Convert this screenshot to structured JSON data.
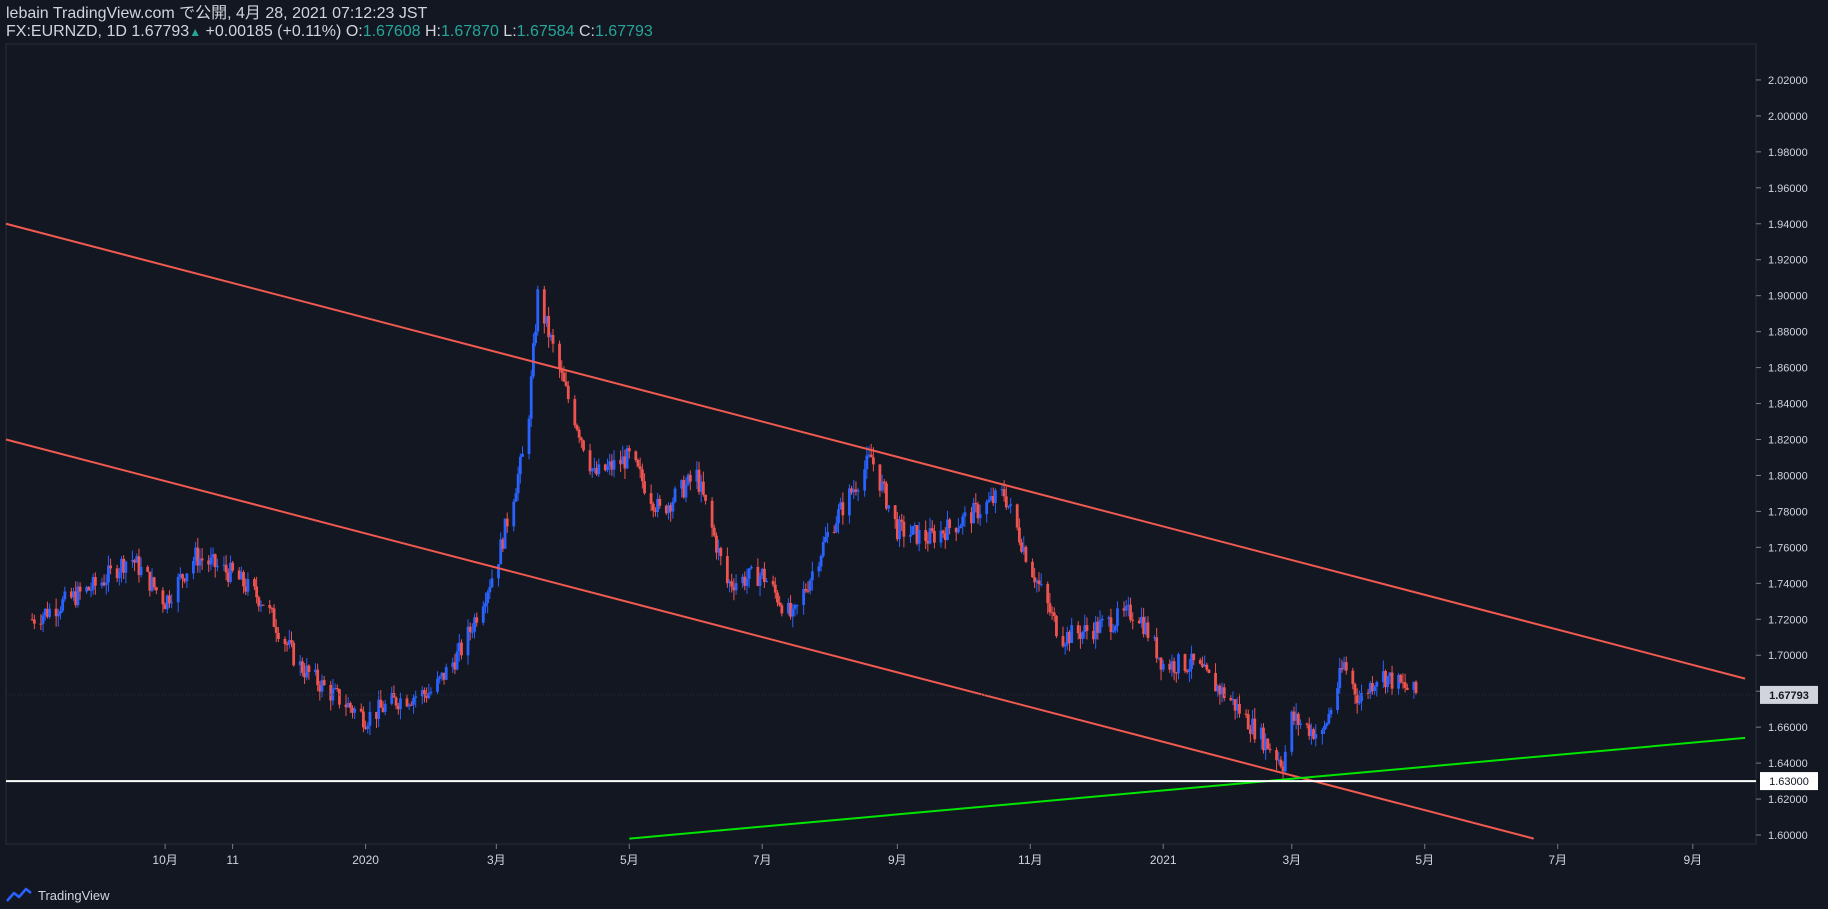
{
  "header": {
    "line1": "lebain TradingView.com で公開, 4月 28, 2021 07:12:23 JST",
    "symbol": "FX:EURNZD, 1D",
    "last": "1.67793",
    "change_arrow": "▲",
    "change": "+0.00185 (+0.11%)",
    "o_label": "O:",
    "o": "1.67608",
    "h_label": "H:",
    "h": "1.67870",
    "l_label": "L:",
    "l": "1.67584",
    "c_label": "C:",
    "c": "1.67793"
  },
  "footer": {
    "brand": "TradingView",
    "icon": "tradingview-logo-icon"
  },
  "colors": {
    "background": "#131722",
    "up": "#2962ff",
    "down": "#ef5350",
    "channel": "#f05a50",
    "support": "#00e600",
    "level": "#ffffff",
    "text": "#d1d4dc",
    "accent": "#26a69a"
  },
  "chart_data": {
    "type": "candlestick",
    "symbol": "FX:EURNZD",
    "interval": "1D",
    "x_tick_labels": [
      "10月",
      "11",
      "2020",
      "3月",
      "5月",
      "7月",
      "9月",
      "11月",
      "2021",
      "3月",
      "5月",
      "7月",
      "9月"
    ],
    "y_ticks": [
      "2.02000",
      "2.00000",
      "1.98000",
      "1.96000",
      "1.94000",
      "1.92000",
      "1.90000",
      "1.88000",
      "1.86000",
      "1.84000",
      "1.82000",
      "1.80000",
      "1.78000",
      "1.76000",
      "1.74000",
      "1.72000",
      "1.70000",
      "1.68000",
      "1.66000",
      "1.64000",
      "1.62000",
      "1.60000"
    ],
    "ylim": [
      1.595,
      2.04
    ],
    "last_price_label": "1.67793",
    "horizontal_level_label": "1.63000",
    "horizontal_level": 1.63,
    "close_series": [
      {
        "date": "2019-08",
        "close": 1.72
      },
      {
        "date": "2019-09",
        "close": 1.74
      },
      {
        "date": "2019-09-15",
        "close": 1.755
      },
      {
        "date": "2019-10",
        "close": 1.73
      },
      {
        "date": "2019-10-15",
        "close": 1.755
      },
      {
        "date": "2019-11",
        "close": 1.745
      },
      {
        "date": "2019-11-15",
        "close": 1.73
      },
      {
        "date": "2019-12",
        "close": 1.695
      },
      {
        "date": "2019-12-15",
        "close": 1.68
      },
      {
        "date": "2020-01",
        "close": 1.665
      },
      {
        "date": "2020-01-15",
        "close": 1.675
      },
      {
        "date": "2020-02",
        "close": 1.68
      },
      {
        "date": "2020-02-15",
        "close": 1.705
      },
      {
        "date": "2020-03",
        "close": 1.75
      },
      {
        "date": "2020-03-15",
        "close": 1.82
      },
      {
        "date": "2020-03-20",
        "close": 1.9
      },
      {
        "date": "2020-04",
        "close": 1.85
      },
      {
        "date": "2020-04-15",
        "close": 1.8
      },
      {
        "date": "2020-05",
        "close": 1.81
      },
      {
        "date": "2020-05-15",
        "close": 1.78
      },
      {
        "date": "2020-06",
        "close": 1.8
      },
      {
        "date": "2020-06-15",
        "close": 1.74
      },
      {
        "date": "2020-07",
        "close": 1.745
      },
      {
        "date": "2020-07-15",
        "close": 1.72
      },
      {
        "date": "2020-08",
        "close": 1.77
      },
      {
        "date": "2020-08-20",
        "close": 1.81
      },
      {
        "date": "2020-09",
        "close": 1.77
      },
      {
        "date": "2020-09-15",
        "close": 1.765
      },
      {
        "date": "2020-10",
        "close": 1.775
      },
      {
        "date": "2020-10-20",
        "close": 1.79
      },
      {
        "date": "2020-11",
        "close": 1.75
      },
      {
        "date": "2020-11-15",
        "close": 1.71
      },
      {
        "date": "2020-12",
        "close": 1.715
      },
      {
        "date": "2020-12-20",
        "close": 1.725
      },
      {
        "date": "2021-01",
        "close": 1.695
      },
      {
        "date": "2021-01-15",
        "close": 1.695
      },
      {
        "date": "2021-02",
        "close": 1.675
      },
      {
        "date": "2021-02-25",
        "close": 1.64
      },
      {
        "date": "2021-03",
        "close": 1.665
      },
      {
        "date": "2021-03-15",
        "close": 1.655
      },
      {
        "date": "2021-03-25",
        "close": 1.695
      },
      {
        "date": "2021-04",
        "close": 1.675
      },
      {
        "date": "2021-04-10",
        "close": 1.69
      },
      {
        "date": "2021-04-28",
        "close": 1.67793
      }
    ],
    "trendlines": [
      {
        "name": "channel-upper",
        "color": "#f05a50",
        "points": [
          {
            "date": "2019-07-20",
            "value": 1.94
          },
          {
            "date": "2021-09-25",
            "value": 1.687
          }
        ]
      },
      {
        "name": "channel-lower",
        "color": "#f05a50",
        "points": [
          {
            "date": "2019-07-20",
            "value": 1.82
          },
          {
            "date": "2021-06-20",
            "value": 1.598
          }
        ]
      },
      {
        "name": "support",
        "color": "#00e600",
        "points": [
          {
            "date": "2020-05-01",
            "value": 1.598
          },
          {
            "date": "2021-09-25",
            "value": 1.654
          }
        ]
      }
    ],
    "grid": false,
    "legend": "none"
  }
}
